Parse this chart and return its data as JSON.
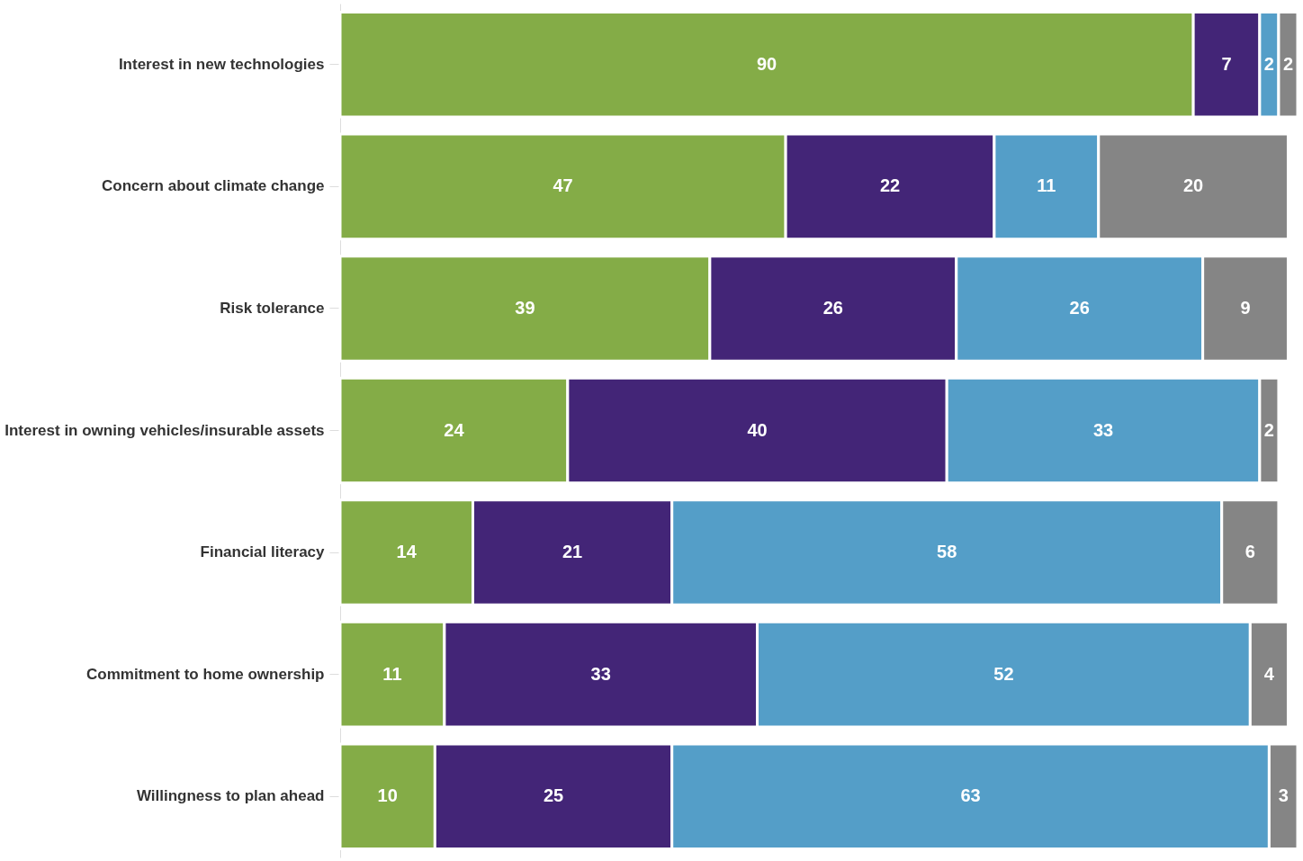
{
  "chart_data": {
    "type": "bar",
    "orientation": "horizontal",
    "stacked": true,
    "data_labels": true,
    "legend": false,
    "grid": false,
    "categories": [
      "Interest in new technologies",
      "Concern about climate change",
      "Risk tolerance",
      "Interest in owning vehicles/insurable assets",
      "Financial literacy",
      "Commitment to home ownership",
      "Willingness to plan ahead"
    ],
    "series": [
      {
        "color": "#84ac47",
        "values": [
          90,
          47,
          39,
          24,
          14,
          11,
          10
        ]
      },
      {
        "color": "#432577",
        "values": [
          7,
          22,
          26,
          40,
          21,
          33,
          25
        ]
      },
      {
        "color": "#549ec8",
        "values": [
          2,
          11,
          26,
          33,
          58,
          52,
          63
        ]
      },
      {
        "color": "#858585",
        "values": [
          2,
          20,
          9,
          2,
          6,
          4,
          3
        ]
      }
    ]
  }
}
